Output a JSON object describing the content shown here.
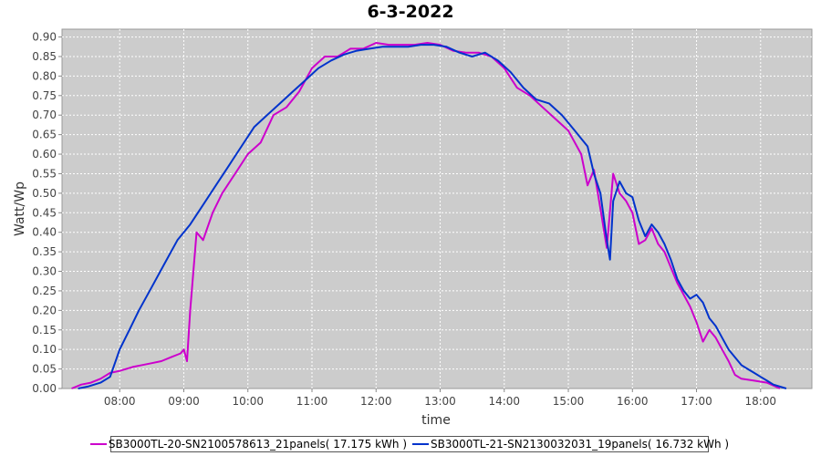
{
  "chart_data": {
    "type": "line",
    "title": "6-3-2022",
    "xlabel": "time",
    "ylabel": "Watt/Wp",
    "xlim": [
      7.1,
      18.8
    ],
    "ylim": [
      0,
      0.92
    ],
    "x_ticks": [
      "08:00",
      "09:00",
      "10:00",
      "11:00",
      "12:00",
      "13:00",
      "14:00",
      "15:00",
      "16:00",
      "17:00",
      "18:00"
    ],
    "x_tick_hours": [
      8,
      9,
      10,
      11,
      12,
      13,
      14,
      15,
      16,
      17,
      18
    ],
    "y_ticks": [
      "0.00",
      "0.05",
      "0.10",
      "0.15",
      "0.20",
      "0.25",
      "0.30",
      "0.35",
      "0.40",
      "0.45",
      "0.50",
      "0.55",
      "0.60",
      "0.65",
      "0.70",
      "0.75",
      "0.80",
      "0.85",
      "0.90"
    ],
    "y_tick_values": [
      0,
      0.05,
      0.1,
      0.15,
      0.2,
      0.25,
      0.3,
      0.35,
      0.4,
      0.45,
      0.5,
      0.55,
      0.6,
      0.65,
      0.7,
      0.75,
      0.8,
      0.85,
      0.9
    ],
    "grid": true,
    "legend_position": "bottom",
    "plot_background": "#cccccc",
    "series": [
      {
        "name": "SB3000TL-20-SN2100578613_21panels( 17.175 kWh )",
        "color": "#cc00cc",
        "points": [
          [
            7.25,
            0.0
          ],
          [
            7.4,
            0.01
          ],
          [
            7.55,
            0.015
          ],
          [
            7.7,
            0.025
          ],
          [
            7.85,
            0.04
          ],
          [
            8.0,
            0.045
          ],
          [
            8.2,
            0.055
          ],
          [
            8.35,
            0.06
          ],
          [
            8.5,
            0.065
          ],
          [
            8.65,
            0.07
          ],
          [
            8.8,
            0.08
          ],
          [
            8.95,
            0.09
          ],
          [
            9.0,
            0.1
          ],
          [
            9.05,
            0.07
          ],
          [
            9.1,
            0.2
          ],
          [
            9.2,
            0.4
          ],
          [
            9.3,
            0.38
          ],
          [
            9.45,
            0.45
          ],
          [
            9.6,
            0.5
          ],
          [
            9.8,
            0.55
          ],
          [
            10.0,
            0.6
          ],
          [
            10.2,
            0.63
          ],
          [
            10.4,
            0.7
          ],
          [
            10.6,
            0.72
          ],
          [
            10.8,
            0.76
          ],
          [
            11.0,
            0.82
          ],
          [
            11.2,
            0.85
          ],
          [
            11.4,
            0.85
          ],
          [
            11.6,
            0.87
          ],
          [
            11.8,
            0.87
          ],
          [
            12.0,
            0.885
          ],
          [
            12.2,
            0.88
          ],
          [
            12.4,
            0.88
          ],
          [
            12.6,
            0.88
          ],
          [
            12.8,
            0.885
          ],
          [
            13.0,
            0.88
          ],
          [
            13.2,
            0.865
          ],
          [
            13.4,
            0.86
          ],
          [
            13.6,
            0.86
          ],
          [
            13.8,
            0.85
          ],
          [
            14.0,
            0.82
          ],
          [
            14.2,
            0.77
          ],
          [
            14.4,
            0.75
          ],
          [
            14.6,
            0.72
          ],
          [
            14.8,
            0.69
          ],
          [
            15.0,
            0.66
          ],
          [
            15.2,
            0.6
          ],
          [
            15.3,
            0.52
          ],
          [
            15.4,
            0.56
          ],
          [
            15.5,
            0.46
          ],
          [
            15.6,
            0.36
          ],
          [
            15.7,
            0.55
          ],
          [
            15.8,
            0.5
          ],
          [
            15.9,
            0.48
          ],
          [
            16.0,
            0.45
          ],
          [
            16.1,
            0.37
          ],
          [
            16.2,
            0.38
          ],
          [
            16.3,
            0.41
          ],
          [
            16.4,
            0.37
          ],
          [
            16.5,
            0.35
          ],
          [
            16.6,
            0.31
          ],
          [
            16.7,
            0.27
          ],
          [
            16.8,
            0.24
          ],
          [
            16.9,
            0.21
          ],
          [
            17.0,
            0.17
          ],
          [
            17.1,
            0.12
          ],
          [
            17.2,
            0.15
          ],
          [
            17.3,
            0.13
          ],
          [
            17.4,
            0.1
          ],
          [
            17.5,
            0.07
          ],
          [
            17.6,
            0.035
          ],
          [
            17.7,
            0.025
          ],
          [
            17.9,
            0.02
          ],
          [
            18.1,
            0.015
          ],
          [
            18.3,
            0.0
          ]
        ]
      },
      {
        "name": "SB3000TL-21-SN2130032031_19panels( 16.732 kWh )",
        "color": "#0033cc",
        "points": [
          [
            7.35,
            0.0
          ],
          [
            7.5,
            0.005
          ],
          [
            7.7,
            0.015
          ],
          [
            7.85,
            0.03
          ],
          [
            8.0,
            0.1
          ],
          [
            8.15,
            0.15
          ],
          [
            8.3,
            0.2
          ],
          [
            8.5,
            0.26
          ],
          [
            8.7,
            0.32
          ],
          [
            8.9,
            0.38
          ],
          [
            9.1,
            0.42
          ],
          [
            9.3,
            0.47
          ],
          [
            9.5,
            0.52
          ],
          [
            9.7,
            0.57
          ],
          [
            9.9,
            0.62
          ],
          [
            10.1,
            0.67
          ],
          [
            10.3,
            0.7
          ],
          [
            10.5,
            0.73
          ],
          [
            10.7,
            0.76
          ],
          [
            10.9,
            0.79
          ],
          [
            11.1,
            0.82
          ],
          [
            11.3,
            0.84
          ],
          [
            11.5,
            0.855
          ],
          [
            11.7,
            0.865
          ],
          [
            11.9,
            0.87
          ],
          [
            12.1,
            0.875
          ],
          [
            12.3,
            0.875
          ],
          [
            12.5,
            0.875
          ],
          [
            12.7,
            0.88
          ],
          [
            12.9,
            0.88
          ],
          [
            13.1,
            0.875
          ],
          [
            13.3,
            0.86
          ],
          [
            13.5,
            0.85
          ],
          [
            13.7,
            0.86
          ],
          [
            13.9,
            0.84
          ],
          [
            14.1,
            0.81
          ],
          [
            14.3,
            0.77
          ],
          [
            14.5,
            0.74
          ],
          [
            14.7,
            0.73
          ],
          [
            14.9,
            0.7
          ],
          [
            15.1,
            0.66
          ],
          [
            15.3,
            0.62
          ],
          [
            15.4,
            0.55
          ],
          [
            15.5,
            0.5
          ],
          [
            15.6,
            0.38
          ],
          [
            15.65,
            0.33
          ],
          [
            15.7,
            0.48
          ],
          [
            15.8,
            0.53
          ],
          [
            15.9,
            0.5
          ],
          [
            16.0,
            0.49
          ],
          [
            16.1,
            0.43
          ],
          [
            16.2,
            0.39
          ],
          [
            16.3,
            0.42
          ],
          [
            16.4,
            0.4
          ],
          [
            16.5,
            0.37
          ],
          [
            16.6,
            0.33
          ],
          [
            16.7,
            0.28
          ],
          [
            16.8,
            0.25
          ],
          [
            16.9,
            0.23
          ],
          [
            17.0,
            0.24
          ],
          [
            17.1,
            0.22
          ],
          [
            17.2,
            0.18
          ],
          [
            17.3,
            0.16
          ],
          [
            17.4,
            0.13
          ],
          [
            17.5,
            0.1
          ],
          [
            17.6,
            0.08
          ],
          [
            17.7,
            0.06
          ],
          [
            17.8,
            0.05
          ],
          [
            17.9,
            0.04
          ],
          [
            18.0,
            0.03
          ],
          [
            18.1,
            0.02
          ],
          [
            18.2,
            0.01
          ],
          [
            18.4,
            0.0
          ]
        ]
      }
    ]
  }
}
